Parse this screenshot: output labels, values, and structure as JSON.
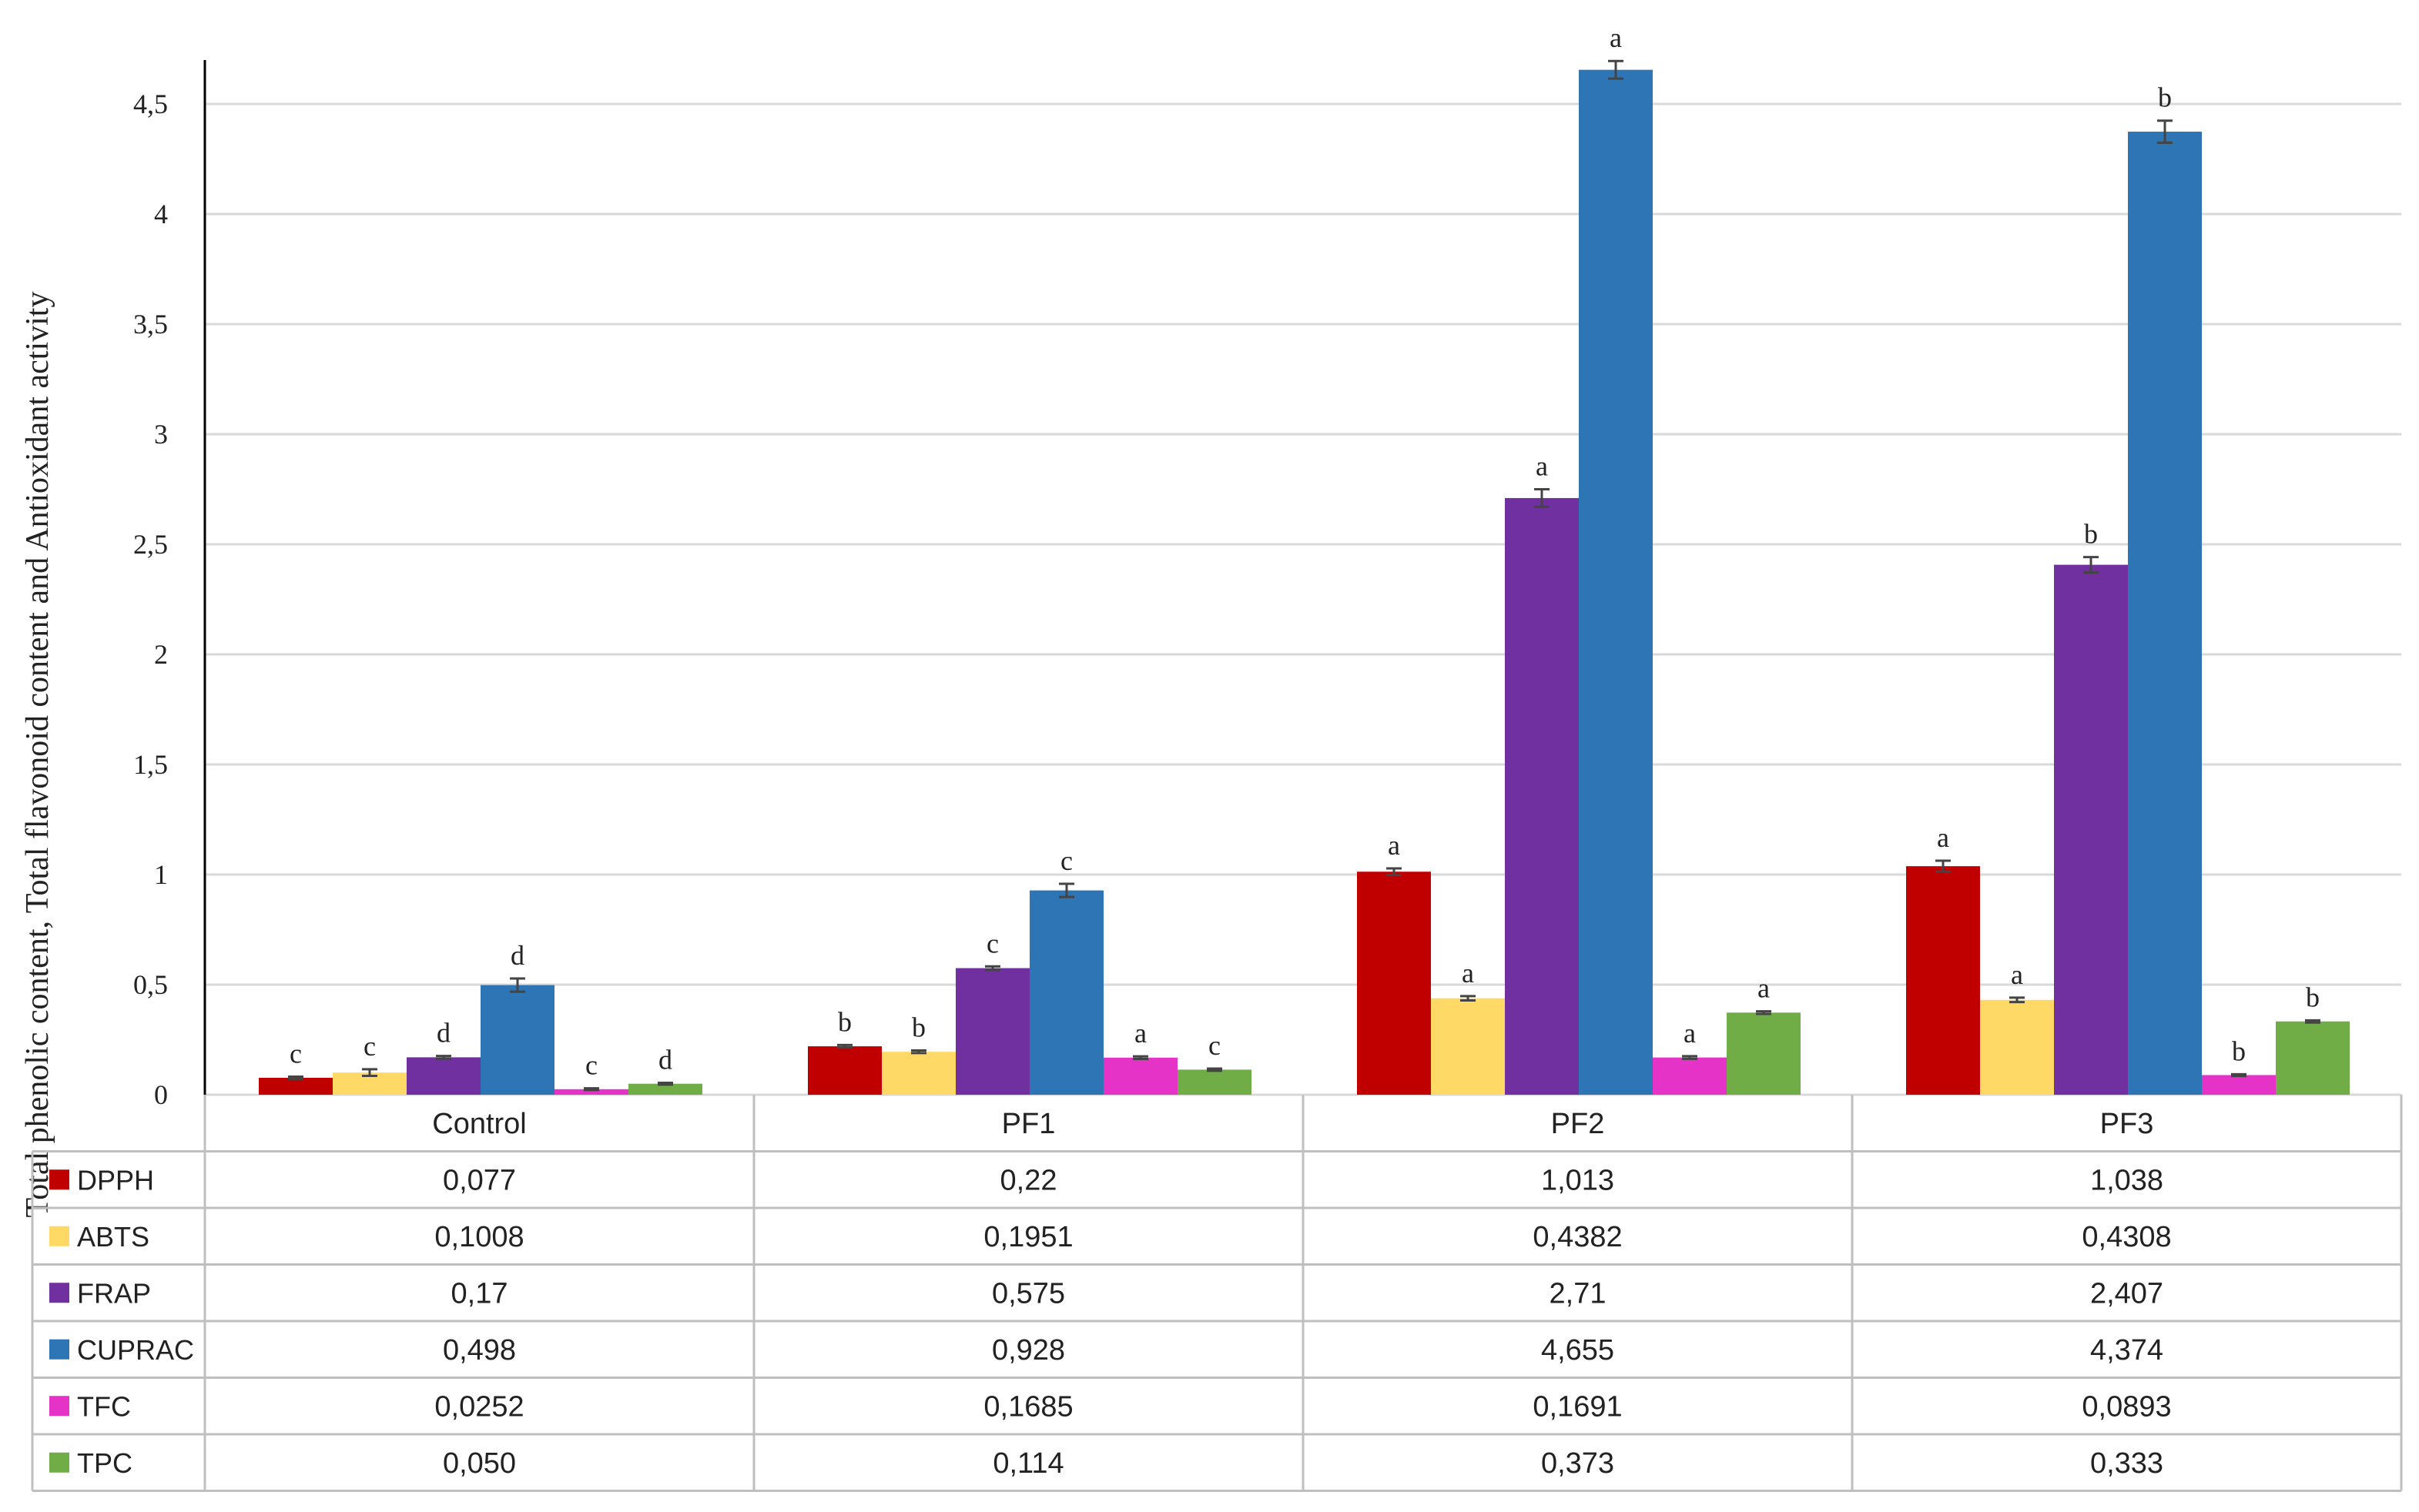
{
  "chart_data": {
    "type": "bar",
    "title": "",
    "xlabel": "",
    "ylabel": "Total phenolic content, Total flavonoid content and Antioxidant activity",
    "ylim": [
      0,
      4.7
    ],
    "yticks": [
      0,
      0.5,
      1,
      1.5,
      2,
      2.5,
      3,
      3.5,
      4,
      4.5
    ],
    "ytick_labels": [
      "0",
      "0,5",
      "1",
      "1,5",
      "2",
      "2,5",
      "3",
      "3,5",
      "4",
      "4,5"
    ],
    "grid": true,
    "legend": "data-table-below",
    "categories": [
      "Control",
      "PF1",
      "PF2",
      "PF3"
    ],
    "series": [
      {
        "name": "DPPH",
        "color": "#C00000",
        "values": [
          0.077,
          0.22,
          1.013,
          1.038
        ],
        "labels": [
          "0,077",
          "0,22",
          "1,013",
          "1,038"
        ],
        "errors": [
          0.005,
          0.006,
          0.015,
          0.025
        ],
        "letters": [
          "c",
          "b",
          "a",
          "a"
        ]
      },
      {
        "name": "ABTS",
        "color": "#FFD966",
        "values": [
          0.1008,
          0.1951,
          0.4382,
          0.4308
        ],
        "labels": [
          "0,1008",
          "0,1951",
          "0,4382",
          "0,4308"
        ],
        "errors": [
          0.015,
          0.006,
          0.01,
          0.01
        ],
        "letters": [
          "c",
          "b",
          "a",
          "a"
        ]
      },
      {
        "name": "FRAP",
        "color": "#7030A0",
        "values": [
          0.17,
          0.575,
          2.71,
          2.407
        ],
        "labels": [
          "0,17",
          "0,575",
          "2,71",
          "2,407"
        ],
        "errors": [
          0.006,
          0.008,
          0.04,
          0.035
        ],
        "letters": [
          "d",
          "c",
          "a",
          "b"
        ]
      },
      {
        "name": "CUPRAC",
        "color": "#2E75B6",
        "values": [
          0.498,
          0.928,
          4.655,
          4.374
        ],
        "labels": [
          "0,498",
          "0,928",
          "4,655",
          "4,374"
        ],
        "errors": [
          0.03,
          0.03,
          0.04,
          0.05
        ],
        "letters": [
          "d",
          "c",
          "a",
          "b"
        ]
      },
      {
        "name": "TFC",
        "color": "#E533C8",
        "values": [
          0.0252,
          0.1685,
          0.1691,
          0.0893
        ],
        "labels": [
          "0,0252",
          "0,1685",
          "0,1691",
          "0,0893"
        ],
        "errors": [
          0.004,
          0.006,
          0.006,
          0.004
        ],
        "letters": [
          "c",
          "a",
          "a",
          "b"
        ]
      },
      {
        "name": "TPC",
        "color": "#70AD47",
        "values": [
          0.05,
          0.114,
          0.373,
          0.333
        ],
        "labels": [
          "0,050",
          "0,114",
          "0,373",
          "0,333"
        ],
        "errors": [
          0.004,
          0.005,
          0.006,
          0.005
        ],
        "letters": [
          "d",
          "c",
          "a",
          "b"
        ]
      }
    ]
  }
}
